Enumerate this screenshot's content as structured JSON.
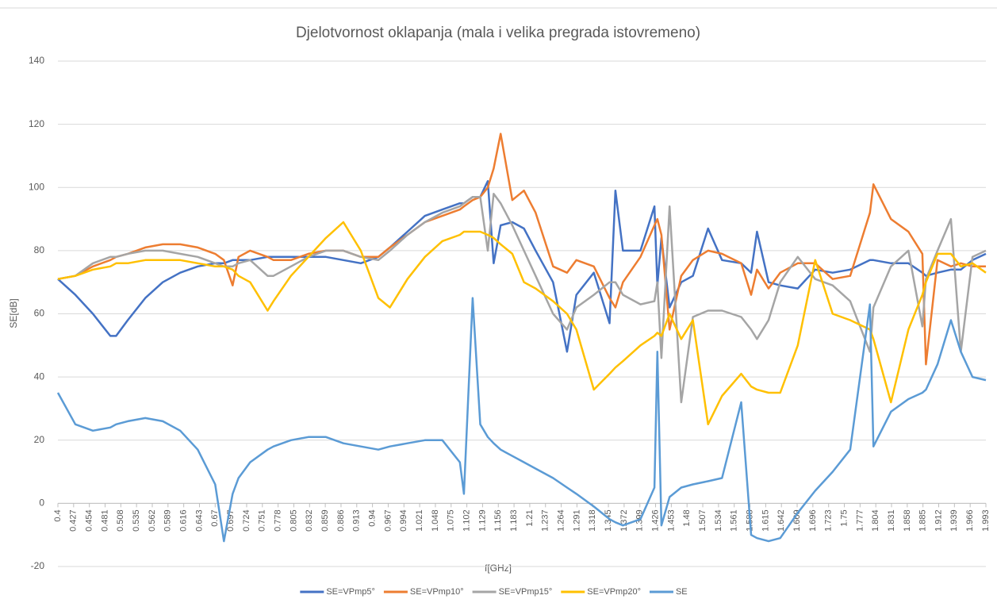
{
  "chart_data": {
    "type": "line",
    "title": "Djelotvornost oklapanja (mala i velika pregrada istovremeno)",
    "x_label": "f[GHz]",
    "y_label": "SE[dB]",
    "x": [
      0.4,
      0.43,
      0.46,
      0.49,
      0.5,
      0.52,
      0.55,
      0.58,
      0.61,
      0.64,
      0.67,
      0.685,
      0.7,
      0.71,
      0.73,
      0.76,
      0.77,
      0.8,
      0.83,
      0.86,
      0.89,
      0.92,
      0.95,
      0.97,
      1.0,
      1.03,
      1.06,
      1.09,
      1.097,
      1.112,
      1.125,
      1.138,
      1.148,
      1.16,
      1.18,
      1.2,
      1.22,
      1.25,
      1.274,
      1.29,
      1.32,
      1.347,
      1.357,
      1.37,
      1.4,
      1.424,
      1.429,
      1.436,
      1.45,
      1.47,
      1.49,
      1.516,
      1.54,
      1.573,
      1.59,
      1.6,
      1.62,
      1.64,
      1.67,
      1.7,
      1.73,
      1.76,
      1.794,
      1.8,
      1.83,
      1.86,
      1.884,
      1.89,
      1.91,
      1.933,
      1.95,
      1.97,
      1.993
    ],
    "series": [
      {
        "name": "SE=VPmp5°",
        "color": "#4472c4",
        "values": [
          71,
          66,
          60,
          53,
          53,
          58,
          65,
          70,
          73,
          75,
          76,
          76,
          77,
          77,
          77,
          78,
          78,
          78,
          78,
          78,
          77,
          76,
          78,
          81,
          86,
          91,
          93,
          95,
          95,
          97,
          97,
          102,
          76,
          88,
          89,
          87,
          80,
          70,
          48,
          66,
          73,
          57,
          99,
          80,
          80,
          94,
          69,
          84,
          62,
          70,
          72,
          87,
          77,
          76,
          73,
          86,
          70,
          69,
          68,
          74,
          73,
          74,
          77,
          77,
          76,
          76,
          73,
          72,
          73,
          74,
          74,
          77,
          79
        ]
      },
      {
        "name": "SE=VPmp10°",
        "color": "#ed7d31",
        "values": [
          71,
          72,
          75,
          77,
          78,
          79,
          81,
          82,
          82,
          81,
          79,
          77,
          69,
          78,
          80,
          78,
          77,
          77,
          79,
          80,
          80,
          78,
          78,
          81,
          85,
          89,
          91,
          93,
          94,
          96,
          97,
          100,
          106,
          117,
          96,
          99,
          92,
          75,
          73,
          77,
          75,
          65,
          62,
          70,
          78,
          88,
          90,
          85,
          55,
          72,
          77,
          80,
          79,
          76,
          66,
          74,
          68,
          73,
          76,
          76,
          71,
          72,
          92,
          101,
          90,
          86,
          79,
          44,
          77,
          75,
          76,
          75,
          75
        ]
      },
      {
        "name": "SE=VPmp15°",
        "color": "#a5a5a5",
        "values": [
          71,
          72,
          76,
          78,
          78,
          79,
          80,
          80,
          79,
          78,
          76,
          75,
          75,
          76,
          77,
          72,
          72,
          75,
          78,
          80,
          80,
          78,
          77,
          80,
          85,
          89,
          92,
          94,
          95,
          97,
          97,
          80,
          98,
          95,
          88,
          80,
          72,
          60,
          55,
          62,
          66,
          70,
          70,
          66,
          63,
          64,
          70,
          46,
          94,
          32,
          59,
          61,
          61,
          59,
          55,
          52,
          58,
          70,
          78,
          71,
          69,
          64,
          48,
          62,
          75,
          80,
          56,
          71,
          80,
          90,
          48,
          78,
          80
        ]
      },
      {
        "name": "SE=VPmp20°",
        "color": "#ffc000",
        "values": [
          71,
          72,
          74,
          75,
          76,
          76,
          77,
          77,
          77,
          76,
          75,
          75,
          74,
          72,
          70,
          61,
          64,
          72,
          78,
          84,
          89,
          80,
          65,
          62,
          71,
          78,
          83,
          85,
          86,
          86,
          86,
          85,
          84,
          82,
          79,
          70,
          68,
          64,
          60,
          55,
          36,
          41,
          43,
          45,
          50,
          53,
          54,
          53,
          60,
          52,
          58,
          25,
          34,
          41,
          37,
          36,
          35,
          35,
          50,
          77,
          60,
          58,
          55,
          52,
          32,
          55,
          66,
          70,
          79,
          79,
          75,
          76,
          73
        ]
      },
      {
        "name": "SE",
        "color": "#5b9bd5",
        "values": [
          35,
          25,
          23,
          24,
          25,
          26,
          27,
          26,
          23,
          17,
          6,
          -12,
          3,
          8,
          13,
          17,
          18,
          20,
          21,
          21,
          19,
          18,
          17,
          18,
          19,
          20,
          20,
          13,
          3,
          65,
          25,
          21,
          19,
          17,
          15,
          13,
          11,
          8,
          5,
          3,
          -1,
          -5,
          -6,
          -7,
          -5,
          5,
          48,
          -7,
          2,
          5,
          6,
          7,
          8,
          32,
          -10,
          -11,
          -12,
          -11,
          -3,
          4,
          10,
          17,
          63,
          18,
          29,
          33,
          35,
          36,
          44,
          58,
          48,
          40,
          39
        ]
      }
    ],
    "xlim": [
      0.4,
      1.993
    ],
    "xticks": [
      0.4,
      0.427,
      0.454,
      0.481,
      0.508,
      0.535,
      0.562,
      0.589,
      0.616,
      0.643,
      0.67,
      0.697,
      0.724,
      0.751,
      0.778,
      0.805,
      0.832,
      0.859,
      0.886,
      0.913,
      0.94,
      0.967,
      0.994,
      1.021,
      1.048,
      1.075,
      1.102,
      1.129,
      1.156,
      1.183,
      1.21,
      1.237,
      1.264,
      1.291,
      1.318,
      1.345,
      1.372,
      1.399,
      1.426,
      1.453,
      1.48,
      1.507,
      1.534,
      1.561,
      1.588,
      1.615,
      1.642,
      1.669,
      1.696,
      1.723,
      1.75,
      1.777,
      1.804,
      1.831,
      1.858,
      1.885,
      1.912,
      1.939,
      1.966,
      1.993
    ],
    "ylim": [
      -20,
      140
    ],
    "yticks": [
      -20,
      0,
      20,
      40,
      60,
      80,
      100,
      120,
      140
    ],
    "grid": true,
    "legend": "bottom"
  }
}
